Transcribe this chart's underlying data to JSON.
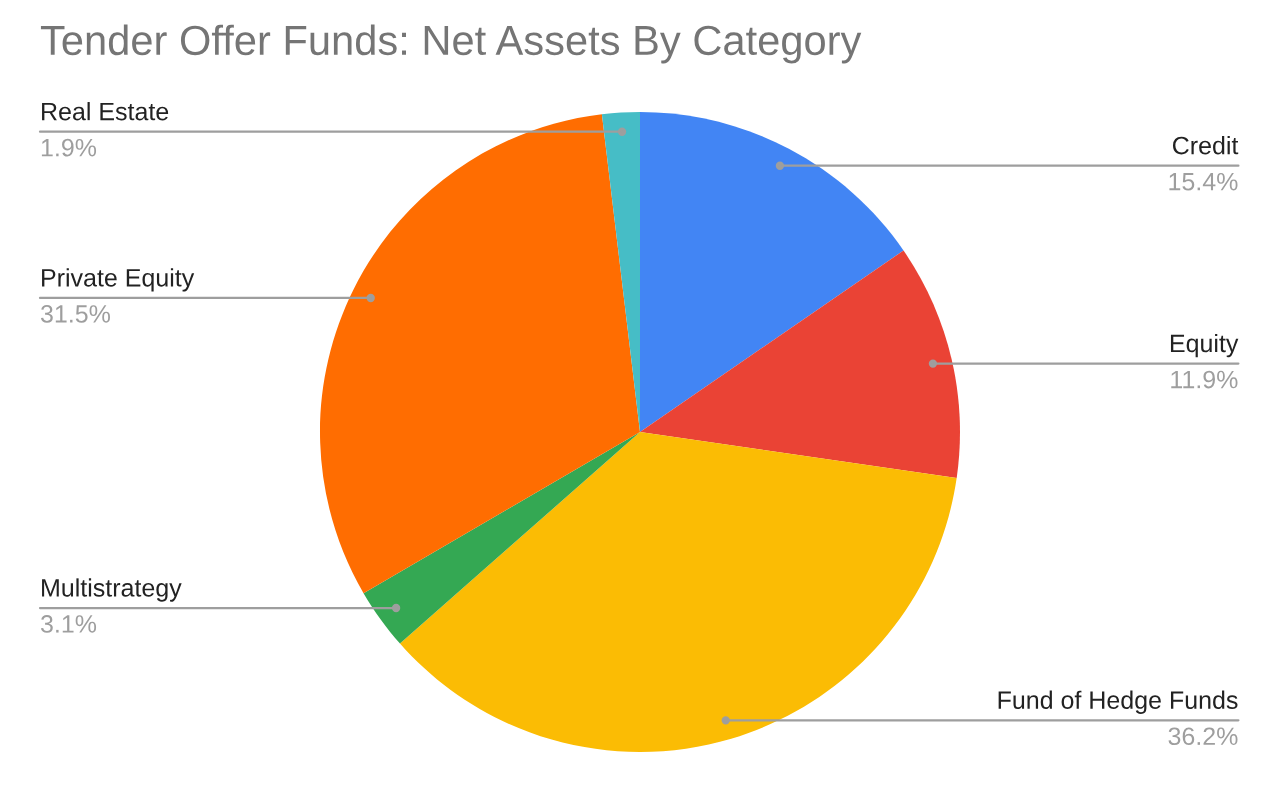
{
  "chart_data": {
    "type": "pie",
    "title": "Tender Offer Funds: Net Assets By Category",
    "categories": [
      "Credit",
      "Equity",
      "Fund of Hedge Funds",
      "Multistrategy",
      "Private Equity",
      "Real Estate"
    ],
    "values": [
      15.4,
      11.9,
      36.2,
      3.1,
      31.5,
      1.9
    ],
    "colors": [
      "#4285f4",
      "#ea4335",
      "#fbbc04",
      "#34a853",
      "#ff6d01",
      "#46bdc6"
    ],
    "value_labels": [
      "15.4%",
      "11.9%",
      "36.2%",
      "3.1%",
      "31.5%",
      "1.9%"
    ],
    "legend": false
  }
}
